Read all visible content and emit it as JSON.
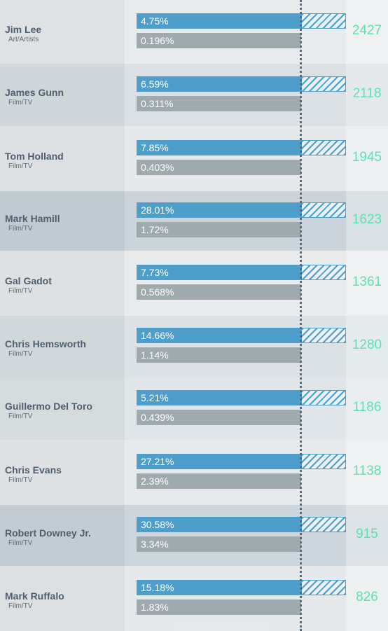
{
  "colors": {
    "share_bar": "#4d9ecb",
    "secondary_bar": "#9eaaae",
    "count_text": "#5fe0b4",
    "name_text": "#4f5e70"
  },
  "chart_data": {
    "type": "bar",
    "orientation": "horizontal",
    "categories": [
      "Jim Lee",
      "James Gunn",
      "Tom Holland",
      "Mark Hamill",
      "Gal Gadot",
      "Chris Hemsworth",
      "Guillermo Del Toro",
      "Chris Evans",
      "Robert Downey Jr.",
      "Mark Ruffalo"
    ],
    "rows": [
      {
        "name": "Jim Lee",
        "category": "Art/Artists",
        "top_label": "4.75%",
        "bottom_label": "0.196%",
        "count": "2427",
        "shade": "#e7eaec"
      },
      {
        "name": "James Gunn",
        "category": "Film/TV",
        "top_label": "6.59%",
        "bottom_label": "0.311%",
        "count": "2118",
        "shade": "#d7dee2"
      },
      {
        "name": "Tom Holland",
        "category": "Film/TV",
        "top_label": "7.85%",
        "bottom_label": "0.403%",
        "count": "1945",
        "shade": "#e4e8eb"
      },
      {
        "name": "Mark Hamill",
        "category": "Film/TV",
        "top_label": "28.01%",
        "bottom_label": "1.72%",
        "count": "1623",
        "shade": "#c7d1d8"
      },
      {
        "name": "Gal Gadot",
        "category": "Film/TV",
        "top_label": "7.73%",
        "bottom_label": "0.568%",
        "count": "1361",
        "shade": "#e6e9eb"
      },
      {
        "name": "Chris Hemsworth",
        "category": "Film/TV",
        "top_label": "14.66%",
        "bottom_label": "1.14%",
        "count": "1280",
        "shade": "#d8dfe3"
      },
      {
        "name": "Guillermo Del Toro",
        "category": "Film/TV",
        "top_label": "5.21%",
        "bottom_label": "0.439%",
        "count": "1186",
        "shade": "#dde3e6"
      },
      {
        "name": "Chris Evans",
        "category": "Film/TV",
        "top_label": "27.21%",
        "bottom_label": "2.39%",
        "count": "1138",
        "shade": "#e5e9eb"
      },
      {
        "name": "Robert Downey Jr.",
        "category": "Film/TV",
        "top_label": "30.58%",
        "bottom_label": "3.34%",
        "count": "915",
        "shade": "#c9d3d9"
      },
      {
        "name": "Mark Ruffalo",
        "category": "Film/TV",
        "top_label": "15.18%",
        "bottom_label": "1.83%",
        "count": "826",
        "shade": "#e4e8ea"
      }
    ],
    "series": [
      {
        "values": [
          4.75,
          6.59,
          7.85,
          28.01,
          7.73,
          14.66,
          5.21,
          27.21,
          30.58,
          15.18
        ]
      },
      {
        "values": [
          0.196,
          0.311,
          0.403,
          1.72,
          0.568,
          1.14,
          0.439,
          2.39,
          3.34,
          1.83
        ]
      }
    ],
    "counts": [
      2427,
      2118,
      1945,
      1623,
      1361,
      1280,
      1186,
      1138,
      915,
      826
    ],
    "title": "",
    "xlabel": "",
    "ylabel": "",
    "grid": false,
    "legend": "none"
  }
}
